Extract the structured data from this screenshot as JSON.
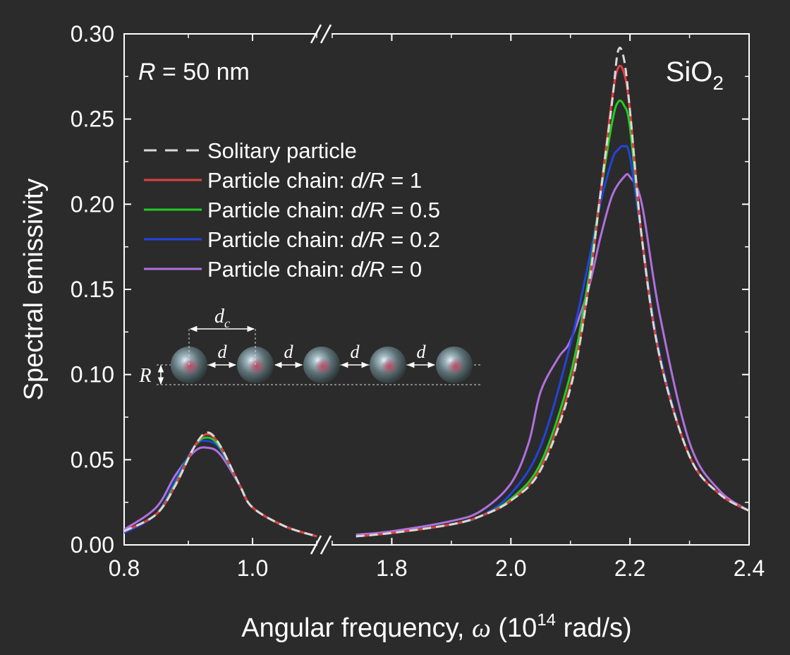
{
  "chart_data": {
    "type": "line",
    "ylabel": "Spectral emissivity",
    "xlabel_prefix": "Angular frequency, ",
    "xlabel_symbol": "ω",
    "xlabel_paren_open": " (10",
    "xlabel_exponent": "14",
    "xlabel_suffix": " rad/s)",
    "ylim": [
      0,
      0.3
    ],
    "x_segments": [
      {
        "range": [
          0.8,
          1.1
        ],
        "ticks": [
          0.8,
          1.0
        ],
        "tick_labels": [
          "0.8",
          "1.0"
        ]
      },
      {
        "range": [
          1.7,
          2.4
        ],
        "ticks": [
          1.8,
          2.0,
          2.2,
          2.4
        ],
        "tick_labels": [
          "1.8",
          "2.0",
          "2.2",
          "2.4"
        ]
      }
    ],
    "yticks": [
      0.0,
      0.05,
      0.1,
      0.15,
      0.2,
      0.25,
      0.3
    ],
    "ytick_labels": [
      "0.00",
      "0.05",
      "0.10",
      "0.15",
      "0.20",
      "0.25",
      "0.30"
    ],
    "annotation_left_var": "R",
    "annotation_left_text": " = 50 nm",
    "annotation_right_base": "SiO",
    "annotation_right_sub": "2",
    "legend_position": "top-left",
    "series": [
      {
        "name": "Solitary particle",
        "color": "#d9d9d9",
        "dash": true,
        "label_parts": [
          "Solitary particle"
        ],
        "x": [
          0.8,
          0.85,
          0.88,
          0.91,
          0.93,
          0.95,
          0.98,
          1.0,
          1.05,
          1.1,
          1.74,
          1.8,
          1.9,
          1.95,
          2.0,
          2.05,
          2.1,
          2.13,
          2.15,
          2.17,
          2.18,
          2.19,
          2.2,
          2.22,
          2.25,
          2.3,
          2.35,
          2.4
        ],
        "y": [
          0.008,
          0.018,
          0.035,
          0.058,
          0.066,
          0.058,
          0.035,
          0.022,
          0.011,
          0.005,
          0.005,
          0.007,
          0.012,
          0.017,
          0.026,
          0.044,
          0.092,
          0.15,
          0.205,
          0.26,
          0.29,
          0.285,
          0.255,
          0.18,
          0.11,
          0.052,
          0.03,
          0.02
        ]
      },
      {
        "name": "Particle chain: d/R = 1",
        "color": "#e04040",
        "dash": false,
        "label_parts": [
          "Particle chain: ",
          "d/R",
          " = 1"
        ],
        "x": [
          0.8,
          0.85,
          0.88,
          0.91,
          0.93,
          0.95,
          0.98,
          1.0,
          1.05,
          1.1,
          1.74,
          1.8,
          1.9,
          1.95,
          2.0,
          2.05,
          2.1,
          2.13,
          2.15,
          2.17,
          2.18,
          2.19,
          2.2,
          2.22,
          2.25,
          2.3,
          2.35,
          2.4
        ],
        "y": [
          0.008,
          0.018,
          0.035,
          0.058,
          0.065,
          0.058,
          0.035,
          0.022,
          0.011,
          0.005,
          0.005,
          0.007,
          0.012,
          0.017,
          0.026,
          0.045,
          0.094,
          0.15,
          0.205,
          0.262,
          0.28,
          0.277,
          0.255,
          0.18,
          0.11,
          0.052,
          0.03,
          0.02
        ]
      },
      {
        "name": "Particle chain: d/R = 0.5",
        "color": "#22cc22",
        "dash": false,
        "label_parts": [
          "Particle chain: ",
          "d/R",
          " = 0.5"
        ],
        "x": [
          0.8,
          0.85,
          0.88,
          0.91,
          0.93,
          0.95,
          0.98,
          1.0,
          1.05,
          1.1,
          1.74,
          1.8,
          1.9,
          1.95,
          2.0,
          2.05,
          2.1,
          2.13,
          2.15,
          2.17,
          2.18,
          2.19,
          2.2,
          2.22,
          2.25,
          2.3,
          2.35,
          2.4
        ],
        "y": [
          0.008,
          0.018,
          0.036,
          0.058,
          0.063,
          0.057,
          0.035,
          0.022,
          0.011,
          0.005,
          0.005,
          0.007,
          0.012,
          0.017,
          0.027,
          0.048,
          0.1,
          0.155,
          0.205,
          0.248,
          0.26,
          0.258,
          0.245,
          0.18,
          0.11,
          0.052,
          0.03,
          0.02
        ]
      },
      {
        "name": "Particle chain: d/R = 0.2",
        "color": "#2244dd",
        "dash": false,
        "label_parts": [
          "Particle chain: ",
          "d/R",
          " = 0.2"
        ],
        "x": [
          0.8,
          0.85,
          0.88,
          0.91,
          0.93,
          0.95,
          0.98,
          1.0,
          1.05,
          1.1,
          1.74,
          1.8,
          1.9,
          1.95,
          2.0,
          2.05,
          2.1,
          2.13,
          2.15,
          2.17,
          2.18,
          2.19,
          2.2,
          2.22,
          2.25,
          2.3,
          2.35,
          2.4
        ],
        "y": [
          0.007,
          0.018,
          0.038,
          0.058,
          0.061,
          0.056,
          0.035,
          0.022,
          0.011,
          0.005,
          0.005,
          0.007,
          0.012,
          0.017,
          0.03,
          0.058,
          0.118,
          0.165,
          0.2,
          0.226,
          0.232,
          0.234,
          0.228,
          0.18,
          0.112,
          0.052,
          0.03,
          0.02
        ]
      },
      {
        "name": "Particle chain: d/R = 0",
        "color": "#b070e0",
        "dash": false,
        "label_parts": [
          "Particle chain: ",
          "d/R",
          " = 0"
        ],
        "x": [
          0.8,
          0.85,
          0.88,
          0.91,
          0.93,
          0.95,
          0.98,
          1.0,
          1.05,
          1.1,
          1.74,
          1.8,
          1.9,
          1.95,
          2.0,
          2.03,
          2.05,
          2.08,
          2.1,
          2.13,
          2.15,
          2.17,
          2.19,
          2.2,
          2.22,
          2.25,
          2.3,
          2.35,
          2.4
        ],
        "y": [
          0.009,
          0.022,
          0.041,
          0.055,
          0.057,
          0.053,
          0.035,
          0.022,
          0.011,
          0.005,
          0.006,
          0.008,
          0.014,
          0.02,
          0.036,
          0.06,
          0.09,
          0.11,
          0.12,
          0.15,
          0.18,
          0.205,
          0.216,
          0.216,
          0.2,
          0.135,
          0.06,
          0.032,
          0.02
        ]
      }
    ],
    "inset": {
      "sphere_count": 5,
      "dc_label": "d",
      "dc_sub": "c",
      "d_label": "d",
      "r_label": "R"
    }
  }
}
